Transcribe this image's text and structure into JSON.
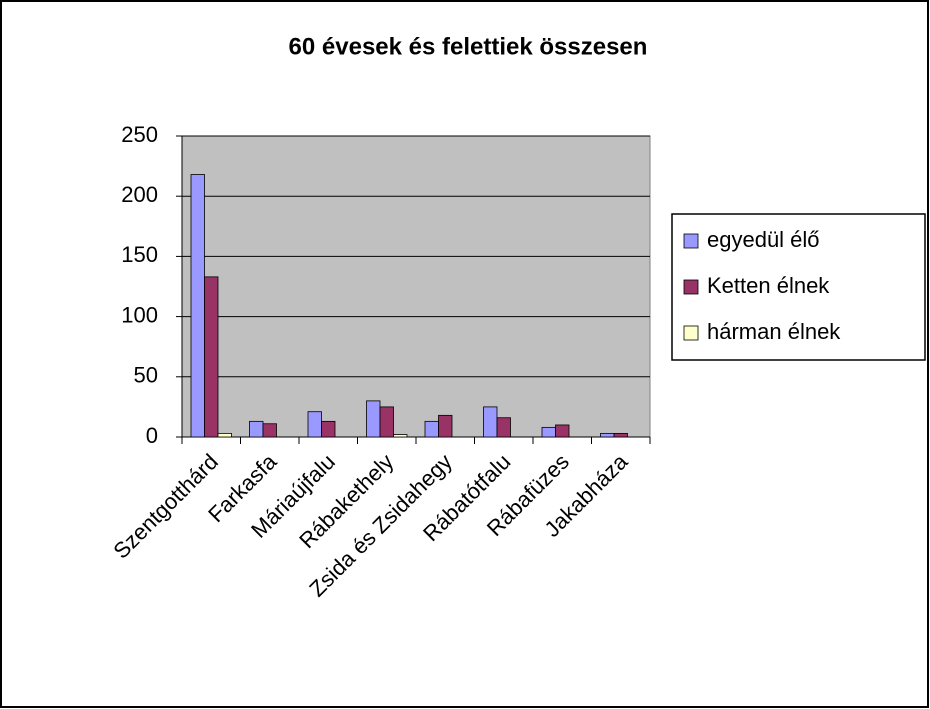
{
  "chart_data": {
    "type": "bar",
    "title": "60 évesek és felettiek összesen",
    "categories": [
      "Szentgotthárd",
      "Farkasfa",
      "Máriaújfalu",
      "Rábakethely",
      "Zsida és Zsidahegy",
      "Rábatótfalu",
      "Rábafüzes",
      "Jakabháza"
    ],
    "series": [
      {
        "name": "egyedül élő",
        "color": "#9999ff",
        "values": [
          218,
          13,
          21,
          30,
          13,
          25,
          8,
          3
        ]
      },
      {
        "name": "Ketten élnek",
        "color": "#993366",
        "values": [
          133,
          11,
          13,
          25,
          18,
          16,
          10,
          3
        ]
      },
      {
        "name": "hárman élnek",
        "color": "#ffffcc",
        "values": [
          3,
          0,
          0,
          2,
          0,
          0,
          0,
          0
        ]
      }
    ],
    "ylim": [
      0,
      250
    ],
    "yticks": [
      0,
      50,
      100,
      150,
      200,
      250
    ],
    "grid": true,
    "legend": "right"
  }
}
